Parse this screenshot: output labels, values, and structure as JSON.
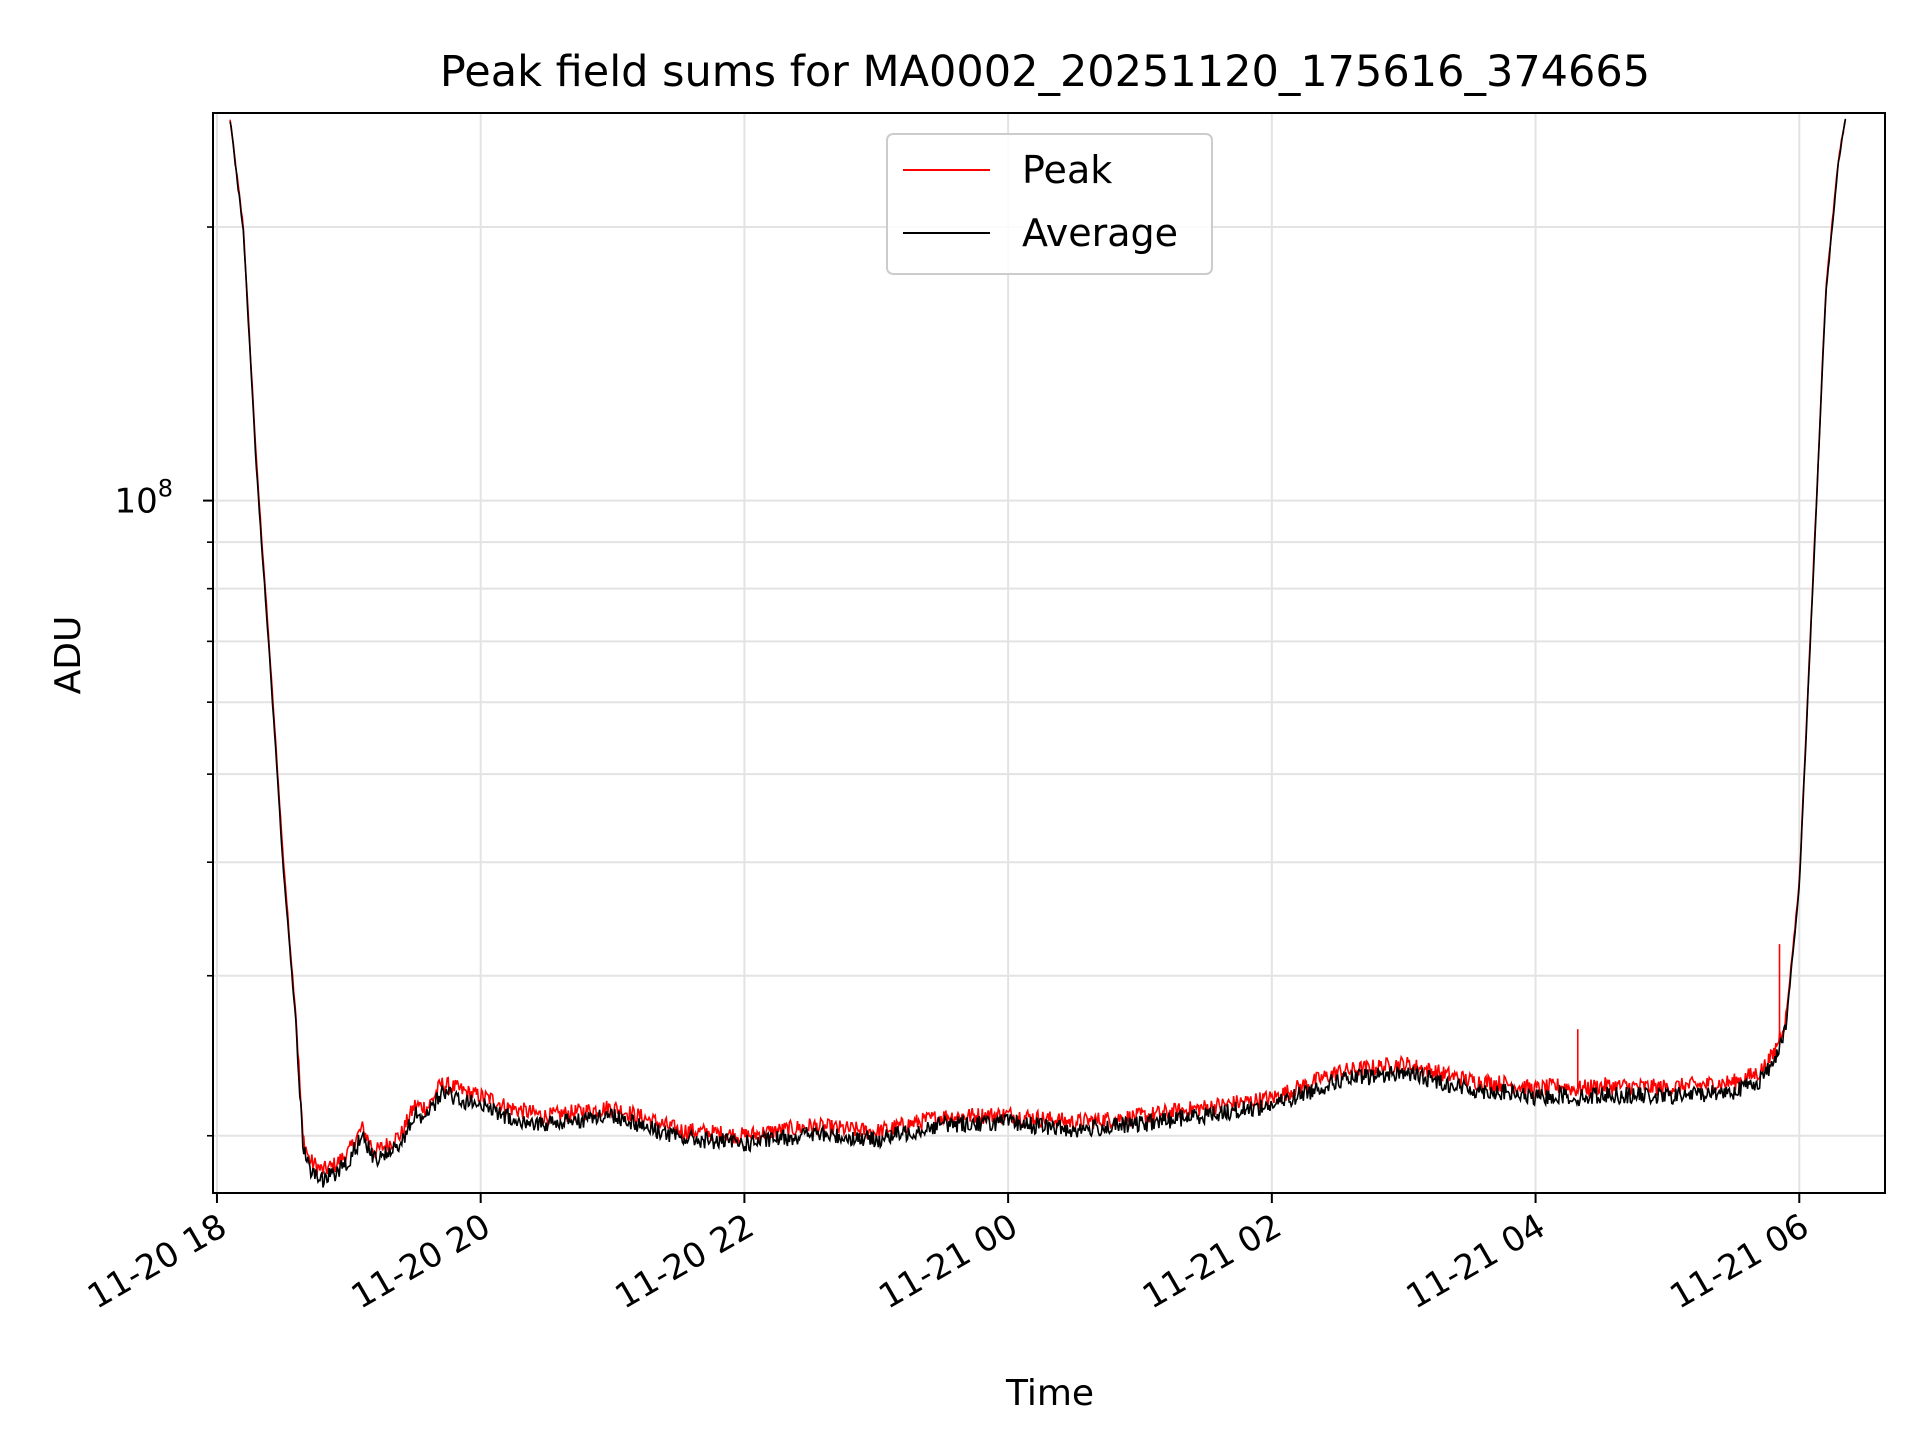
{
  "chart_data": {
    "type": "line",
    "title": "Peak field sums for MA0002_20251120_175616_374665",
    "xlabel": "Time",
    "ylabel": "ADU",
    "yscale": "log",
    "ylim": [
      17300000,
      267000000
    ],
    "xlim_hours": [
      -0.03,
      12.65
    ],
    "grid": true,
    "legend_position": "upper center",
    "x_tick_hours": [
      0,
      2,
      4,
      6,
      8,
      10,
      12
    ],
    "x_tick_labels": [
      "11-20 18",
      "11-20 20",
      "11-20 22",
      "11-21 00",
      "11-21 02",
      "11-21 04",
      "11-21 06"
    ],
    "y_major_ticks": [
      {
        "value": 100000000,
        "base": "10",
        "exp": "8"
      }
    ],
    "y_minor_ticks": [
      20000000,
      30000000,
      40000000,
      50000000,
      60000000,
      70000000,
      80000000,
      90000000,
      200000000
    ],
    "x_hours_from_1800": [
      0.1,
      0.2,
      0.3,
      0.4,
      0.5,
      0.55,
      0.6,
      0.65,
      0.7,
      0.8,
      0.9,
      1.0,
      1.1,
      1.2,
      1.3,
      1.4,
      1.5,
      1.6,
      1.7,
      1.8,
      1.9,
      2.0,
      2.1,
      2.2,
      2.5,
      3.0,
      3.5,
      4.0,
      4.5,
      5.0,
      5.5,
      6.0,
      6.5,
      7.0,
      7.5,
      8.0,
      8.5,
      9.0,
      9.5,
      9.8,
      10.0,
      10.2,
      10.3,
      10.5,
      11.0,
      11.5,
      11.7,
      11.8,
      11.9,
      12.0,
      12.1,
      12.2,
      12.3,
      12.35
    ],
    "series": [
      {
        "name": "Peak",
        "color": "#ff0000",
        "values": [
          262000000,
          200000000,
          110000000,
          68000000,
          41000000,
          33000000,
          27000000,
          20000000,
          18800000,
          18300000,
          18600000,
          19200000,
          20400000,
          19200000,
          19600000,
          20100000,
          21600000,
          21500000,
          22800000,
          22600000,
          22300000,
          22100000,
          21900000,
          21500000,
          21000000,
          21500000,
          20300000,
          20000000,
          20500000,
          20200000,
          21000000,
          21100000,
          20700000,
          21000000,
          21500000,
          22000000,
          23500000,
          24000000,
          23000000,
          22800000,
          22500000,
          22700000,
          22500000,
          22700000,
          22600000,
          22900000,
          23500000,
          24500000,
          27000000,
          38000000,
          80000000,
          170000000,
          240000000,
          262000000
        ]
      },
      {
        "name": "Average",
        "color": "#000000",
        "values": [
          262000000,
          198000000,
          108000000,
          67000000,
          40000000,
          32500000,
          26500000,
          19700000,
          18400000,
          17900000,
          18200000,
          18800000,
          20000000,
          18800000,
          19200000,
          19700000,
          21100000,
          21000000,
          22300000,
          22100000,
          21800000,
          21600000,
          21400000,
          21000000,
          20600000,
          21100000,
          19900000,
          19600000,
          20100000,
          19800000,
          20600000,
          20700000,
          20300000,
          20600000,
          21100000,
          21600000,
          23000000,
          23500000,
          22500000,
          22300000,
          22000000,
          22200000,
          22000000,
          22200000,
          22100000,
          22400000,
          23000000,
          24000000,
          26500000,
          37500000,
          79000000,
          168000000,
          238000000,
          262000000
        ]
      }
    ],
    "annotations": [
      {
        "type": "spike",
        "series": "Peak",
        "x_hour": 10.32,
        "value": 26200000
      },
      {
        "type": "spike",
        "series": "Peak",
        "x_hour": 11.85,
        "value": 32500000
      }
    ]
  }
}
